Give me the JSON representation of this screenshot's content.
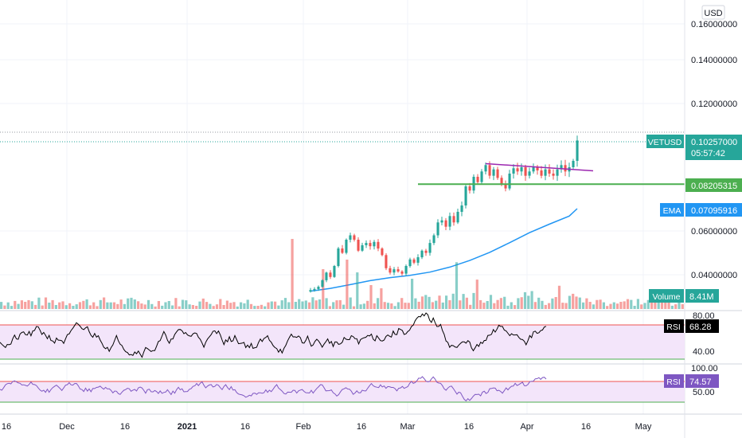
{
  "header": {
    "currency_label": "USD"
  },
  "chart_data": {
    "type": "candlestick",
    "symbol": "VETUSD",
    "price_axis": {
      "ticks": [
        "0.16000000",
        "0.14000000",
        "0.12000000",
        "0.06000000",
        "0.04000000"
      ],
      "tick_values": [
        0.16,
        0.14,
        0.12,
        0.06,
        0.04
      ],
      "range": [
        0.0315,
        0.168
      ]
    },
    "time_axis": {
      "labels": [
        "16",
        "Dec",
        "16",
        "2021",
        "16",
        "Feb",
        "16",
        "Mar",
        "16",
        "Apr",
        "16",
        "May"
      ],
      "label_days": [
        0,
        15,
        30,
        46,
        61,
        77,
        92,
        105,
        120,
        136,
        151,
        166
      ],
      "range_days": [
        -1,
        171
      ]
    },
    "badges": {
      "last_price": {
        "symbol": "VETUSD",
        "value": "0.10257000",
        "countdown": "05:57:42",
        "price": 0.10257,
        "color": "#26a69a"
      },
      "support": {
        "value": "0.08205315",
        "price": 0.08205,
        "color": "#4caf50"
      },
      "ema": {
        "name": "EMA",
        "value": "0.07095916",
        "price": 0.071,
        "color": "#2196f3"
      },
      "volume": {
        "name": "Volume",
        "value": "8.41M",
        "color": "#26a69a"
      }
    },
    "support_line": {
      "price": 0.08205,
      "from_day": 104,
      "color": "#4caf50"
    },
    "trendline": {
      "from": [
        121,
        0.0917
      ],
      "to": [
        148,
        0.0883
      ],
      "color": "#9c27b0"
    },
    "high_line": {
      "price": 0.1068
    },
    "ema_series": {
      "days": [
        77,
        82,
        87,
        92,
        97,
        102,
        107,
        112,
        117,
        122,
        127,
        132,
        137,
        142,
        144
      ],
      "values": [
        0.0325,
        0.0338,
        0.0355,
        0.0373,
        0.0387,
        0.0397,
        0.0412,
        0.0435,
        0.0465,
        0.0502,
        0.0546,
        0.0592,
        0.0632,
        0.067,
        0.0705
      ]
    },
    "candles": {
      "days": [
        77,
        78,
        79,
        80,
        81,
        82,
        83,
        84,
        85,
        86,
        87,
        88,
        89,
        90,
        91,
        92,
        93,
        94,
        95,
        96,
        97,
        98,
        99,
        100,
        101,
        102,
        103,
        104,
        105,
        106,
        107,
        108,
        109,
        110,
        111,
        112,
        113,
        114,
        115,
        116,
        117,
        118,
        119,
        120,
        121,
        122,
        123,
        124,
        125,
        126,
        127,
        128,
        129,
        130,
        131,
        132,
        133,
        134,
        135,
        136,
        137,
        138,
        139,
        140,
        141,
        142,
        143,
        144
      ],
      "close": [
        0.033,
        0.0335,
        0.0345,
        0.0375,
        0.041,
        0.039,
        0.044,
        0.052,
        0.05,
        0.056,
        0.058,
        0.056,
        0.051,
        0.0535,
        0.0545,
        0.053,
        0.055,
        0.052,
        0.049,
        0.043,
        0.041,
        0.0425,
        0.0415,
        0.0405,
        0.044,
        0.047,
        0.0455,
        0.048,
        0.051,
        0.05,
        0.0545,
        0.058,
        0.064,
        0.065,
        0.062,
        0.067,
        0.064,
        0.069,
        0.072,
        0.081,
        0.079,
        0.0855,
        0.083,
        0.088,
        0.091,
        0.086,
        0.089,
        0.085,
        0.082,
        0.08,
        0.087,
        0.0895,
        0.088,
        0.09,
        0.086,
        0.088,
        0.09,
        0.0885,
        0.086,
        0.089,
        0.087,
        0.086,
        0.089,
        0.091,
        0.088,
        0.09,
        0.093,
        0.1026
      ]
    },
    "volume_pane": {
      "bars": 200
    },
    "rsi_panes": [
      {
        "name": "RSI",
        "value": "68.28",
        "levels": [
          "80.00",
          "40.00"
        ],
        "upper_level": 80,
        "lower_level": 40,
        "band": [
          70,
          30
        ]
      },
      {
        "name": "RSI",
        "value": "74.57",
        "levels": [
          "100.00",
          "50.00"
        ],
        "upper_level": 100,
        "lower_level": 50,
        "band": [
          70,
          30
        ]
      }
    ],
    "colors": {
      "up": "#26a69a",
      "down": "#ef5350",
      "rsi_band": "#f3e5fa",
      "rsi_upper": "#ef5350",
      "rsi_lower": "#4caf50",
      "rsi_line_1": "#000000",
      "rsi_line_2": "#7e57c2"
    }
  }
}
